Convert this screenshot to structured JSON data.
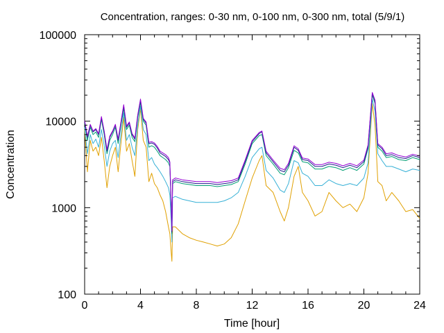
{
  "chart_data": {
    "type": "line",
    "title": "Concentration, ranges: 0-30 nm, 0-100 nm, 0-300 nm, total (5/9/1)",
    "xlabel": "Time [hour]",
    "ylabel": "Concentration",
    "xlim": [
      0,
      24
    ],
    "ylim": [
      100,
      100000
    ],
    "yscale": "log",
    "grid": false,
    "x_ticks": [
      "0",
      "4",
      "8",
      "12",
      "16",
      "20",
      "24"
    ],
    "y_ticks": [
      "100",
      "1000",
      "10000",
      "100000"
    ],
    "series_colors": [
      "#e0a000",
      "#36b0d6",
      "#009e73",
      "#1e1e8c",
      "#9400d3"
    ],
    "series": [
      {
        "x": [
          0,
          0.2,
          0.4,
          0.6,
          0.8,
          1,
          1.2,
          1.4,
          1.6,
          1.8,
          2,
          2.2,
          2.4,
          2.6,
          2.8,
          3,
          3.2,
          3.4,
          3.6,
          3.8,
          4,
          4.2,
          4.4,
          4.6,
          4.8,
          5,
          5.2,
          5.4,
          5.6,
          5.8,
          6,
          6.1,
          6.2,
          6.25,
          6.3,
          6.5,
          7,
          7.5,
          8,
          8.5,
          9,
          9.5,
          10,
          10.5,
          11,
          11.5,
          12,
          12.5,
          12.7,
          13,
          13.5,
          14,
          14.3,
          14.6,
          15,
          15.3,
          15.6,
          16,
          16.5,
          17,
          17.5,
          18,
          18.5,
          19,
          19.5,
          20,
          20.3,
          20.6,
          20.8,
          21,
          21.3,
          21.6,
          22,
          22.5,
          23,
          23.5,
          24
        ],
        "y": [
          8000,
          2600,
          6000,
          4500,
          5000,
          4000,
          6500,
          3500,
          1700,
          3000,
          4000,
          5000,
          2600,
          5500,
          11000,
          4500,
          5500,
          3500,
          2300,
          8000,
          14000,
          6000,
          5000,
          2000,
          2500,
          1900,
          1700,
          1400,
          1200,
          900,
          600,
          500,
          300,
          240,
          600,
          600,
          500,
          450,
          420,
          400,
          380,
          360,
          380,
          450,
          650,
          1200,
          2200,
          3500,
          4000,
          1800,
          1500,
          900,
          700,
          1000,
          2300,
          3000,
          1500,
          1200,
          800,
          900,
          1500,
          1200,
          1000,
          1100,
          900,
          1300,
          2500,
          16000,
          9000,
          2000,
          1800,
          1200,
          1500,
          1200,
          900,
          950,
          750
        ]
      },
      {
        "x": [
          0,
          0.2,
          0.4,
          0.6,
          0.8,
          1,
          1.2,
          1.4,
          1.6,
          1.8,
          2,
          2.2,
          2.4,
          2.6,
          2.8,
          3,
          3.2,
          3.4,
          3.6,
          3.8,
          4,
          4.2,
          4.4,
          4.6,
          4.8,
          5,
          5.2,
          5.4,
          5.6,
          5.8,
          6,
          6.1,
          6.2,
          6.25,
          6.3,
          6.5,
          7,
          7.5,
          8,
          8.5,
          9,
          9.5,
          10,
          10.5,
          11,
          11.5,
          12,
          12.5,
          12.7,
          13,
          13.5,
          14,
          14.3,
          14.6,
          15,
          15.3,
          15.6,
          16,
          16.5,
          17,
          17.5,
          18,
          18.5,
          19,
          19.5,
          20,
          20.3,
          20.6,
          20.8,
          21,
          21.3,
          21.6,
          22,
          22.5,
          23,
          23.5,
          24
        ],
        "y": [
          8500,
          4200,
          7000,
          5500,
          6200,
          5000,
          8000,
          5200,
          3000,
          4500,
          5500,
          6000,
          3800,
          7000,
          12500,
          6000,
          7000,
          5000,
          4000,
          9000,
          15000,
          8000,
          7000,
          3500,
          3800,
          3200,
          2900,
          2600,
          2300,
          2000,
          1700,
          1400,
          700,
          400,
          1300,
          1350,
          1250,
          1200,
          1150,
          1150,
          1150,
          1150,
          1200,
          1300,
          1500,
          2300,
          3800,
          4800,
          5000,
          2700,
          2200,
          1600,
          1500,
          1900,
          3500,
          3300,
          2500,
          2300,
          1800,
          1800,
          2100,
          1900,
          1800,
          1900,
          1800,
          2200,
          3300,
          18000,
          13000,
          4200,
          3500,
          3000,
          3000,
          2800,
          2600,
          2800,
          2700
        ]
      },
      {
        "x": [
          0,
          0.2,
          0.4,
          0.6,
          0.8,
          1,
          1.2,
          1.4,
          1.6,
          1.8,
          2,
          2.2,
          2.4,
          2.6,
          2.8,
          3,
          3.2,
          3.4,
          3.6,
          3.8,
          4,
          4.2,
          4.4,
          4.6,
          4.8,
          5,
          5.2,
          5.4,
          5.6,
          5.8,
          6,
          6.1,
          6.2,
          6.25,
          6.3,
          6.5,
          7,
          7.5,
          8,
          8.5,
          9,
          9.5,
          10,
          10.5,
          11,
          11.5,
          12,
          12.5,
          12.7,
          13,
          13.5,
          14,
          14.3,
          14.6,
          15,
          15.3,
          15.6,
          16,
          16.5,
          17,
          17.5,
          18,
          18.5,
          19,
          19.5,
          20,
          20.3,
          20.6,
          20.8,
          21,
          21.3,
          21.6,
          22,
          22.5,
          23,
          23.5,
          24
        ],
        "y": [
          9500,
          6000,
          8500,
          7000,
          7500,
          6500,
          10500,
          7000,
          4200,
          6000,
          7000,
          8500,
          5500,
          9000,
          14000,
          8000,
          9000,
          6500,
          5800,
          11000,
          16500,
          10000,
          9000,
          5000,
          5200,
          5000,
          4500,
          4000,
          3800,
          3600,
          3300,
          3000,
          1000,
          500,
          1900,
          2000,
          1900,
          1850,
          1800,
          1800,
          1800,
          1750,
          1800,
          1850,
          2000,
          3200,
          5500,
          6800,
          7000,
          4000,
          3200,
          2500,
          2400,
          2900,
          4600,
          4300,
          3400,
          3300,
          2800,
          2800,
          3000,
          2900,
          2700,
          2900,
          2700,
          3200,
          4800,
          20000,
          16000,
          5000,
          4500,
          3800,
          3900,
          3600,
          3500,
          3800,
          3600
        ]
      },
      {
        "x": [
          0,
          0.2,
          0.4,
          0.6,
          0.8,
          1,
          1.2,
          1.4,
          1.6,
          1.8,
          2,
          2.2,
          2.4,
          2.6,
          2.8,
          3,
          3.2,
          3.4,
          3.6,
          3.8,
          4,
          4.2,
          4.4,
          4.6,
          4.8,
          5,
          5.2,
          5.4,
          5.6,
          5.8,
          6,
          6.1,
          6.2,
          6.25,
          6.3,
          6.5,
          7,
          7.5,
          8,
          8.5,
          9,
          9.5,
          10,
          10.5,
          11,
          11.5,
          12,
          12.5,
          12.7,
          13,
          13.5,
          14,
          14.3,
          14.6,
          15,
          15.3,
          15.6,
          16,
          16.5,
          17,
          17.5,
          18,
          18.5,
          19,
          19.5,
          20,
          20.3,
          20.6,
          20.8,
          21,
          21.3,
          21.6,
          22,
          22.5,
          23,
          23.5,
          24
        ],
        "y": [
          10000,
          6500,
          9000,
          7500,
          8000,
          7000,
          11000,
          7500,
          4500,
          6500,
          7500,
          9000,
          6000,
          9500,
          15000,
          8500,
          9500,
          7000,
          6200,
          11500,
          17500,
          10500,
          9500,
          5500,
          5600,
          5400,
          4900,
          4300,
          4100,
          3900,
          3600,
          3300,
          1100,
          520,
          2000,
          2100,
          2000,
          1950,
          1900,
          1900,
          1900,
          1850,
          1900,
          1950,
          2100,
          3400,
          5800,
          7200,
          7500,
          4300,
          3400,
          2700,
          2600,
          3100,
          5000,
          4600,
          3600,
          3500,
          3000,
          3000,
          3200,
          3100,
          2900,
          3100,
          2900,
          3400,
          5100,
          21000,
          17000,
          5300,
          4800,
          4000,
          4100,
          3800,
          3700,
          4000,
          3800
        ]
      },
      {
        "x": [
          0,
          0.2,
          0.4,
          0.6,
          0.8,
          1,
          1.2,
          1.4,
          1.6,
          1.8,
          2,
          2.2,
          2.4,
          2.6,
          2.8,
          3,
          3.2,
          3.4,
          3.6,
          3.8,
          4,
          4.2,
          4.4,
          4.6,
          4.8,
          5,
          5.2,
          5.4,
          5.6,
          5.8,
          6,
          6.1,
          6.2,
          6.25,
          6.3,
          6.5,
          7,
          7.5,
          8,
          8.5,
          9,
          9.5,
          10,
          10.5,
          11,
          11.5,
          12,
          12.5,
          12.7,
          13,
          13.5,
          14,
          14.3,
          14.6,
          15,
          15.3,
          15.6,
          16,
          16.5,
          17,
          17.5,
          18,
          18.5,
          19,
          19.5,
          20,
          20.3,
          20.6,
          20.8,
          21,
          21.3,
          21.6,
          22,
          22.5,
          23,
          23.5,
          24
        ],
        "y": [
          10200,
          6700,
          9200,
          7700,
          8200,
          7200,
          11300,
          7700,
          4700,
          6700,
          7700,
          9200,
          6200,
          9800,
          15500,
          8800,
          9800,
          7200,
          6400,
          11800,
          18000,
          10800,
          9800,
          5700,
          5800,
          5600,
          5100,
          4500,
          4300,
          4100,
          3800,
          3400,
          1150,
          540,
          2100,
          2200,
          2100,
          2050,
          2000,
          2000,
          2000,
          1950,
          2000,
          2050,
          2200,
          3550,
          6000,
          7400,
          7700,
          4500,
          3550,
          2850,
          2750,
          3250,
          5200,
          4800,
          3750,
          3650,
          3150,
          3150,
          3350,
          3250,
          3050,
          3250,
          3050,
          3550,
          5300,
          21500,
          17500,
          5500,
          5000,
          4200,
          4300,
          4000,
          3850,
          4150,
          3950
        ]
      }
    ]
  }
}
